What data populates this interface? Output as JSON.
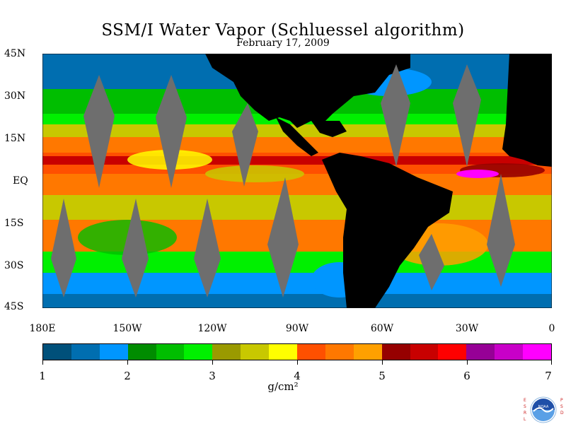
{
  "title": "SSM/I Water Vapor (Schluessel algorithm)",
  "subtitle": "February 17, 2009",
  "lat_labels": [
    "45N",
    "30N",
    "15N",
    "EQ",
    "15S",
    "30S",
    "45S"
  ],
  "lon_labels": [
    "180E",
    "150W",
    "120W",
    "90W",
    "60W",
    "30W",
    "0"
  ],
  "colorbar": {
    "colors": [
      "#00507a",
      "#006eb0",
      "#0096ff",
      "#008c00",
      "#00be00",
      "#00f000",
      "#9a9a00",
      "#c8c800",
      "#ffff00",
      "#ff5000",
      "#ff7800",
      "#ffa000",
      "#960000",
      "#c80000",
      "#ff0000",
      "#960096",
      "#c800c8",
      "#ff00ff"
    ],
    "labels": [
      "1",
      "2",
      "3",
      "4",
      "5",
      "6",
      "7"
    ],
    "units": "g/cm²"
  },
  "logo": {
    "left_text": "ESRL",
    "right_text": "PSD",
    "center_text": "NOAA"
  },
  "map_colors": {
    "land": "#000000",
    "nodata_swath": "#6e6e6e"
  }
}
